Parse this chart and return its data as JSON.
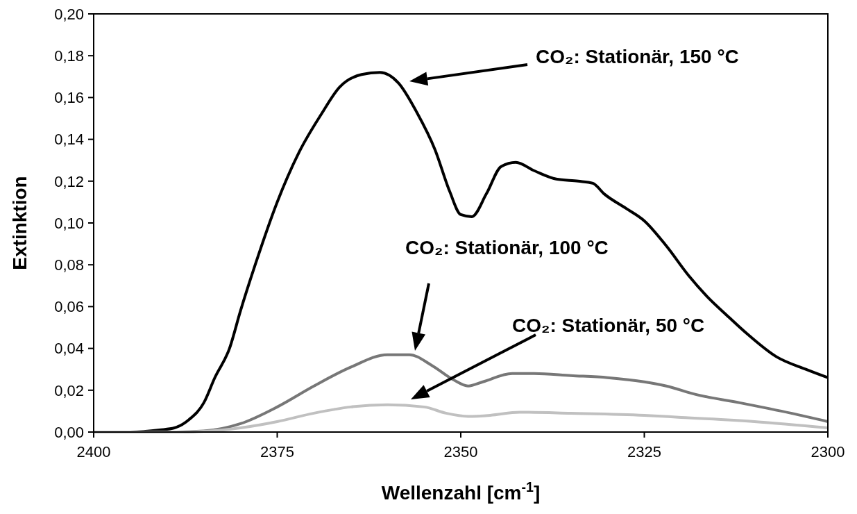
{
  "chart_data": {
    "type": "line",
    "xlabel": "Wellenzahl [cm$^{-1}$]",
    "ylabel": "Extinktion",
    "xlim": [
      2400,
      2300
    ],
    "xticks": [
      2400,
      2375,
      2350,
      2325,
      2300
    ],
    "ylim": [
      0,
      0.2
    ],
    "yticks": [
      {
        "value": 0,
        "label": "0,00"
      },
      {
        "value": 0.02,
        "label": "0,02"
      },
      {
        "value": 0.04,
        "label": "0,04"
      },
      {
        "value": 0.06,
        "label": "0,06"
      },
      {
        "value": 0.08,
        "label": "0,08"
      },
      {
        "value": 0.1,
        "label": "0,10"
      },
      {
        "value": 0.12,
        "label": "0,12"
      },
      {
        "value": 0.14,
        "label": "0,14"
      },
      {
        "value": 0.16,
        "label": "0,16"
      },
      {
        "value": 0.18,
        "label": "0,18"
      },
      {
        "value": 0.2,
        "label": "0,20"
      }
    ],
    "grid": false,
    "marker": "none",
    "line_style": "solid",
    "series": [
      {
        "color": "#000000",
        "x": [
          2400,
          2395,
          2391,
          2389,
          2387,
          2385,
          2383.5,
          2381.5,
          2380,
          2378,
          2375,
          2372,
          2369,
          2366.5,
          2363.5,
          2361,
          2358.5,
          2356,
          2353.5,
          2351.5,
          2350,
          2348.5,
          2346.5,
          2344.5,
          2342.5,
          2340,
          2337,
          2334,
          2332,
          2330.5,
          2327.5,
          2325,
          2322,
          2319,
          2316.5,
          2313.5,
          2311,
          2307,
          2303,
          2300
        ],
        "values": [
          0,
          0,
          0.001,
          0.002,
          0.006,
          0.014,
          0.026,
          0.04,
          0.058,
          0.08,
          0.11,
          0.134,
          0.152,
          0.165,
          0.171,
          0.172,
          0.167,
          0.153,
          0.135,
          0.115,
          0.104,
          0.103,
          0.114,
          0.127,
          0.129,
          0.125,
          0.121,
          0.12,
          0.119,
          0.114,
          0.107,
          0.101,
          0.089,
          0.075,
          0.065,
          0.055,
          0.047,
          0.036,
          0.03,
          0.026
        ]
      },
      {
        "color": "#777777",
        "x": [
          2400,
          2390,
          2385,
          2380,
          2375,
          2370,
          2365,
          2360,
          2357,
          2354,
          2351,
          2349,
          2347,
          2343,
          2340,
          2335,
          2330,
          2325,
          2322,
          2318,
          2312,
          2305,
          2300
        ],
        "values": [
          0,
          0,
          0.0005,
          0.004,
          0.012,
          0.022,
          0.031,
          0.037,
          0.037,
          0.032,
          0.025,
          0.022,
          0.024,
          0.028,
          0.028,
          0.027,
          0.026,
          0.024,
          0.022,
          0.018,
          0.014,
          0.009,
          0.005
        ]
      },
      {
        "color": "#c0c0c0",
        "x": [
          2400,
          2388,
          2385,
          2380,
          2375,
          2370,
          2365,
          2360,
          2355,
          2352,
          2349,
          2346,
          2342,
          2335,
          2325,
          2320,
          2310,
          2300
        ],
        "values": [
          0,
          0,
          0.0003,
          0.002,
          0.005,
          0.009,
          0.012,
          0.013,
          0.012,
          0.009,
          0.0075,
          0.008,
          0.0095,
          0.009,
          0.008,
          0.007,
          0.005,
          0.002
        ]
      }
    ],
    "annotations": [
      "CO₂: Stationär, 150 °C",
      "CO₂: Stationär, 100 °C",
      "CO₂: Stationär, 50 °C"
    ]
  }
}
